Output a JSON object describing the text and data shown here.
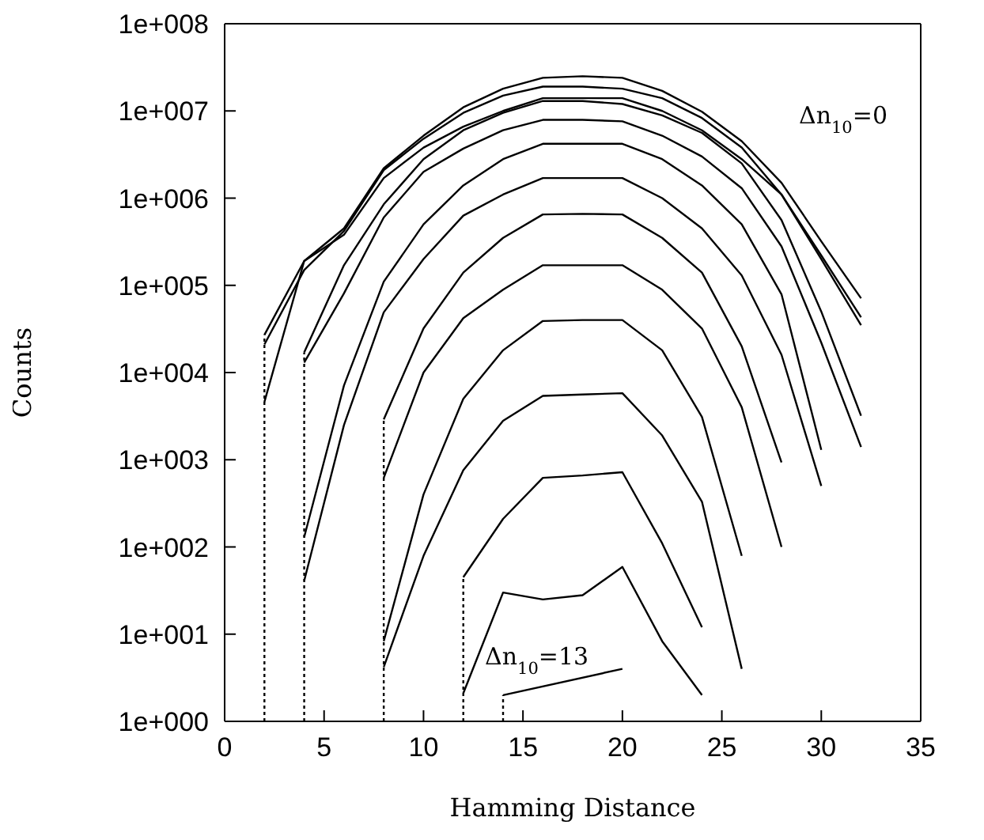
{
  "chart_data": {
    "type": "line",
    "xlabel": "Hamming Distance",
    "ylabel": "Counts",
    "xlim": [
      0,
      35
    ],
    "xticks": [
      0,
      5,
      10,
      15,
      20,
      25,
      30,
      35
    ],
    "ylim": [
      1,
      100000000
    ],
    "yticks": [
      {
        "value": 1,
        "label": "1e+000"
      },
      {
        "value": 10,
        "label": "1e+001"
      },
      {
        "value": 100,
        "label": "1e+002"
      },
      {
        "value": 1000,
        "label": "1e+003"
      },
      {
        "value": 10000,
        "label": "1e+004"
      },
      {
        "value": 100000,
        "label": "1e+005"
      },
      {
        "value": 1000000,
        "label": "1e+006"
      },
      {
        "value": 10000000,
        "label": "1e+007"
      },
      {
        "value": 100000000,
        "label": "1e+008"
      }
    ],
    "log": "y",
    "marker": "none",
    "line_style": "solid",
    "series": [
      {
        "color": "#000000",
        "x": [
          2,
          4,
          6,
          8,
          10,
          12,
          14,
          16,
          18,
          20,
          22,
          24,
          26,
          28,
          30,
          32
        ],
        "values": [
          27000,
          190000,
          450000,
          2200000,
          5200000,
          11000000,
          18000000,
          24000000,
          25000000,
          24000000,
          17000000,
          9800000,
          4500000,
          1500000,
          320000,
          71000
        ]
      },
      {
        "color": "#000000",
        "x": [
          2,
          4,
          6,
          8,
          10,
          12,
          14,
          16,
          18,
          20,
          22,
          24,
          26,
          28,
          30,
          32
        ],
        "values": [
          21000,
          150000,
          420000,
          2100000,
          4800000,
          9500000,
          15000000,
          19000000,
          19000000,
          18000000,
          14000000,
          8300000,
          3800000,
          1100000,
          220000,
          43000
        ]
      },
      {
        "color": "#000000",
        "x": [
          2,
          4,
          6,
          8,
          10,
          12,
          14,
          16,
          18,
          20,
          22,
          24,
          26,
          28,
          30,
          32
        ],
        "values": [
          4600,
          190000,
          380000,
          1700000,
          3800000,
          6600000,
          10000000,
          14000000,
          14000000,
          14000000,
          10000000,
          6000000,
          2800000,
          1100000,
          200000,
          35000
        ]
      },
      {
        "color": "#000000",
        "x": [
          4,
          6,
          8,
          10,
          12,
          14,
          16,
          18,
          20,
          22,
          24,
          26,
          28,
          30,
          32
        ],
        "values": [
          17000,
          170000,
          850000,
          2800000,
          6000000,
          9500000,
          13000000,
          13000000,
          12000000,
          8900000,
          5600000,
          2500000,
          560000,
          50000,
          3200
        ]
      },
      {
        "color": "#000000",
        "x": [
          4,
          6,
          8,
          10,
          12,
          14,
          16,
          18,
          20,
          22,
          24,
          26,
          28,
          30,
          32
        ],
        "values": [
          13000,
          81000,
          600000,
          2000000,
          3700000,
          6000000,
          7900000,
          7900000,
          7600000,
          5200000,
          3000000,
          1300000,
          280000,
          22000,
          1400
        ]
      },
      {
        "color": "#000000",
        "x": [
          4,
          6,
          8,
          10,
          12,
          14,
          16,
          18,
          20,
          22,
          24,
          26,
          28,
          30
        ],
        "values": [
          130,
          7100,
          110000,
          500000,
          1400000,
          2800000,
          4200000,
          4200000,
          4200000,
          2800000,
          1400000,
          500000,
          79000,
          1300
        ]
      },
      {
        "color": "#000000",
        "x": [
          4,
          6,
          8,
          10,
          12,
          14,
          16,
          18,
          20,
          22,
          24,
          26,
          28,
          30
        ],
        "values": [
          41,
          2500,
          49000,
          200000,
          630000,
          1100000,
          1700000,
          1700000,
          1700000,
          1000000,
          450000,
          130000,
          16000,
          500
        ]
      },
      {
        "color": "#000000",
        "x": [
          8,
          10,
          12,
          14,
          16,
          18,
          20,
          22,
          24,
          26,
          28
        ],
        "values": [
          2900,
          32000,
          140000,
          350000,
          650000,
          660000,
          650000,
          350000,
          140000,
          20000,
          930
        ]
      },
      {
        "color": "#000000",
        "x": [
          8,
          10,
          12,
          14,
          16,
          18,
          20,
          22,
          24,
          26,
          28
        ],
        "values": [
          620,
          10000,
          42000,
          89000,
          170000,
          170000,
          170000,
          89000,
          32000,
          4000,
          100
        ]
      },
      {
        "color": "#000000",
        "x": [
          8,
          10,
          12,
          14,
          16,
          18,
          20,
          22,
          24,
          26
        ],
        "values": [
          8.3,
          400,
          5000,
          18000,
          39000,
          40000,
          40000,
          18000,
          3100,
          79
        ]
      },
      {
        "color": "#000000",
        "x": [
          8,
          10,
          12,
          14,
          16,
          18,
          20,
          22,
          24,
          26
        ],
        "values": [
          4.2,
          79,
          760,
          2800,
          5400,
          5600,
          5800,
          1900,
          330,
          4
        ]
      },
      {
        "color": "#000000",
        "x": [
          12,
          14,
          16,
          18,
          20,
          22,
          24
        ],
        "values": [
          45,
          210,
          620,
          660,
          720,
          110,
          12
        ]
      },
      {
        "color": "#000000",
        "x": [
          12,
          14,
          16,
          18,
          20,
          22,
          24
        ],
        "values": [
          2.1,
          30,
          25,
          28,
          59,
          8.3,
          2
        ]
      },
      {
        "color": "#000000",
        "x": [
          14,
          20
        ],
        "values": [
          2,
          4
        ]
      },
      {
        "color": "#000000",
        "x": [
          2,
          2
        ],
        "values": [
          1,
          27000
        ],
        "line_style": "dotted"
      },
      {
        "color": "#000000",
        "x": [
          4,
          4
        ],
        "values": [
          1,
          17000
        ],
        "line_style": "dotted"
      },
      {
        "color": "#000000",
        "x": [
          8,
          8
        ],
        "values": [
          1,
          2900
        ],
        "line_style": "dotted"
      },
      {
        "color": "#000000",
        "x": [
          12,
          12
        ],
        "values": [
          1,
          45
        ],
        "line_style": "dotted"
      },
      {
        "color": "#000000",
        "x": [
          14,
          14
        ],
        "values": [
          1,
          2
        ],
        "line_style": "dotted"
      }
    ],
    "annotations": [
      "Δn$_{10}$=0",
      "Δn$_{10}$=13"
    ]
  }
}
